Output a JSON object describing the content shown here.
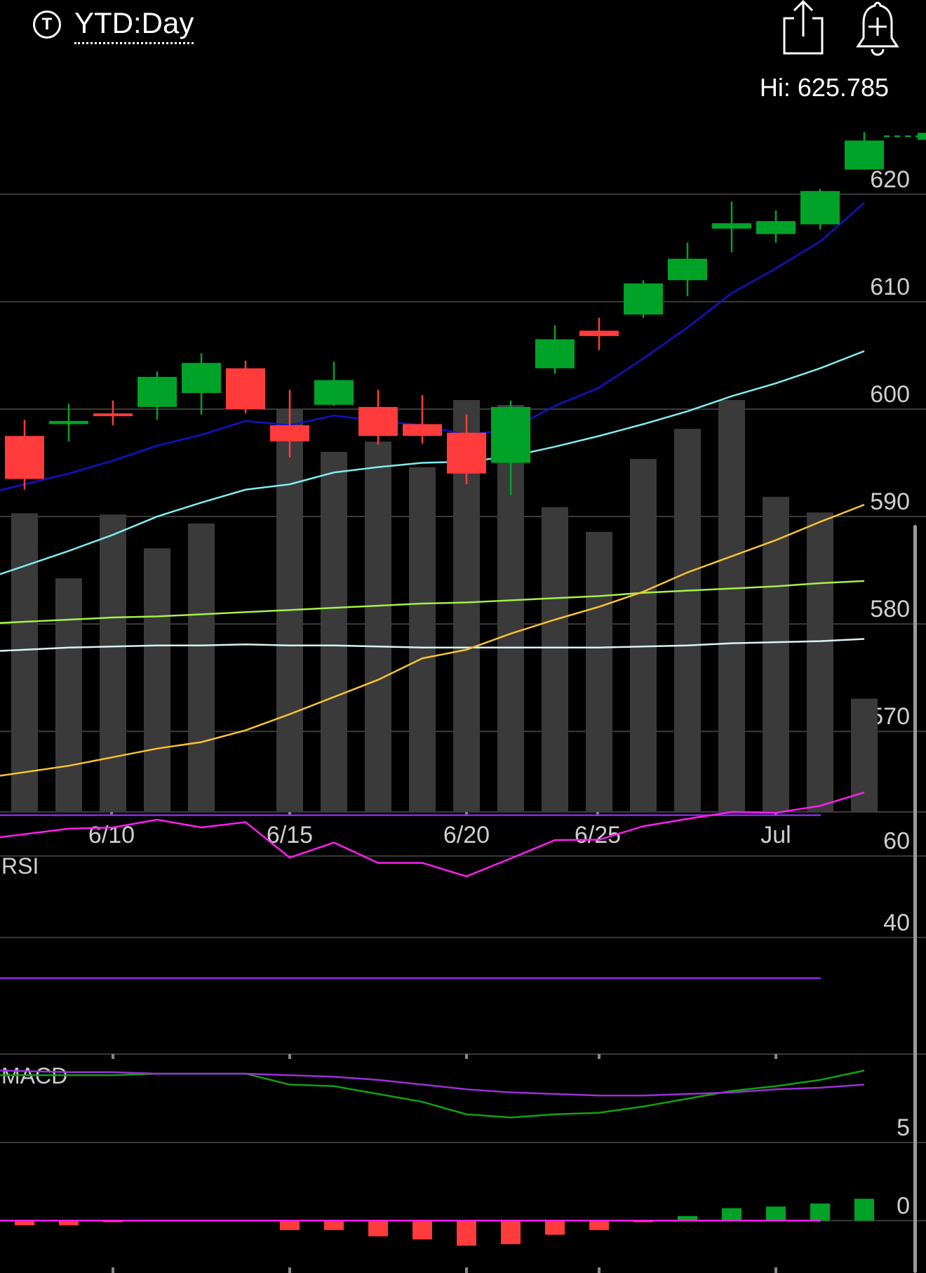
{
  "header": {
    "logo_letter": "T",
    "range_label": "YTD:Day",
    "hi_label": "Hi: 625.785"
  },
  "icons": {
    "logo": "t-circle-icon",
    "share": "share-icon",
    "alert": "add-alert-bell-icon"
  },
  "colors": {
    "up": "#00a327",
    "down": "#ff3b3b",
    "volume": "#3a3a3a",
    "ma_blue": "#1212c8",
    "ma_cyan": "#7feef0",
    "ma_lime": "#a6f04a",
    "ma_white": "#d8f3f3",
    "ma_yellow": "#f5c430",
    "rsi_line": "#ff1ef0",
    "rsi_bands": "#8a2be2",
    "macd_line": "#12a012",
    "signal_line": "#9a30d8",
    "macd_zero": "#ff1ef0",
    "grid": "#3a3a3a"
  },
  "chart_data": [
    {
      "type": "candlestick",
      "title": "",
      "x_tick_labels": [
        "6/10",
        "6/15",
        "6/20",
        "6/25",
        "Jul"
      ],
      "x_ticks_at_index": [
        2,
        6,
        10,
        13,
        17
      ],
      "y_tick_labels": [
        "620",
        "610",
        "600",
        "590",
        "580",
        "570"
      ],
      "ylim": [
        562.5,
        627.5
      ],
      "grid": true,
      "candles": [
        {
          "o": 597.5,
          "c": 593.5,
          "h": 599.0,
          "l": 592.5
        },
        {
          "o": 598.6,
          "c": 598.9,
          "h": 600.5,
          "l": 597.0
        },
        {
          "o": 599.6,
          "c": 599.5,
          "h": 600.8,
          "l": 598.5
        },
        {
          "o": 600.2,
          "c": 603.0,
          "h": 603.5,
          "l": 599.0
        },
        {
          "o": 601.5,
          "c": 604.3,
          "h": 605.2,
          "l": 599.5
        },
        {
          "o": 603.8,
          "c": 600.0,
          "h": 604.5,
          "l": 599.6
        },
        {
          "o": 598.5,
          "c": 597.0,
          "h": 601.8,
          "l": 595.5
        },
        {
          "o": 600.4,
          "c": 602.7,
          "h": 604.4,
          "l": 600.3
        },
        {
          "o": 600.2,
          "c": 597.5,
          "h": 601.8,
          "l": 596.7
        },
        {
          "o": 598.6,
          "c": 597.5,
          "h": 601.3,
          "l": 596.8
        },
        {
          "o": 597.8,
          "c": 594.0,
          "h": 599.5,
          "l": 593.0
        },
        {
          "o": 595.0,
          "c": 600.2,
          "h": 600.8,
          "l": 592.0
        },
        {
          "o": 603.8,
          "c": 606.5,
          "h": 607.8,
          "l": 603.3
        },
        {
          "o": 607.3,
          "c": 606.8,
          "h": 608.5,
          "l": 605.5
        },
        {
          "o": 608.8,
          "c": 611.7,
          "h": 612.0,
          "l": 608.5
        },
        {
          "o": 612.0,
          "c": 614.0,
          "h": 615.5,
          "l": 610.5
        },
        {
          "o": 616.8,
          "c": 617.3,
          "h": 619.3,
          "l": 614.6
        },
        {
          "o": 616.3,
          "c": 617.5,
          "h": 618.5,
          "l": 615.5
        },
        {
          "o": 617.2,
          "c": 620.3,
          "h": 620.5,
          "l": 616.7
        },
        {
          "o": 622.3,
          "c": 625.0,
          "h": 625.785,
          "l": 622.3
        }
      ],
      "hi_value": 625.785,
      "volume_relative": [
        0.725,
        0.567,
        0.722,
        0.64,
        0.7,
        0.0,
        0.978,
        0.874,
        0.899,
        0.837,
        1.0,
        0.988,
        0.74,
        0.68,
        0.857,
        0.93,
        1.0,
        0.765,
        0.727,
        0.275
      ],
      "series": [
        {
          "values": [
            593.0,
            594.0,
            595.2,
            596.6,
            597.6,
            598.9,
            598.5,
            599.4,
            598.9,
            598.5,
            597.6,
            598.1,
            600.3,
            602.0,
            604.7,
            607.6,
            610.8,
            613.1,
            615.6,
            619.2
          ]
        },
        {
          "values": [
            585.4,
            586.8,
            588.3,
            590.0,
            591.3,
            592.5,
            593.0,
            594.1,
            594.6,
            595.0,
            595.1,
            595.6,
            596.5,
            597.5,
            598.6,
            599.8,
            601.2,
            602.4,
            603.8,
            605.4
          ]
        },
        {
          "values": [
            580.2,
            580.4,
            580.6,
            580.7,
            580.9,
            581.1,
            581.3,
            581.5,
            581.7,
            581.9,
            582.0,
            582.2,
            582.4,
            582.6,
            582.9,
            583.1,
            583.3,
            583.5,
            583.8,
            584.0
          ]
        },
        {
          "values": [
            577.6,
            577.8,
            577.9,
            578.0,
            578.0,
            578.1,
            578.0,
            578.0,
            577.9,
            577.8,
            577.8,
            577.8,
            577.8,
            577.8,
            577.9,
            578.0,
            578.2,
            578.3,
            578.4,
            578.6
          ]
        },
        {
          "values": [
            566.2,
            566.8,
            567.6,
            568.4,
            569.0,
            570.1,
            571.6,
            573.2,
            574.8,
            576.8,
            577.6,
            579.1,
            580.4,
            581.6,
            583.0,
            584.8,
            586.3,
            587.8,
            589.5,
            591.1
          ]
        }
      ]
    },
    {
      "type": "line",
      "title": "RSI",
      "y_tick_labels": [
        "60",
        "40"
      ],
      "ylim": [
        20,
        82
      ],
      "bands": [
        70,
        30
      ],
      "grid": true,
      "series": [
        {
          "values": [
            64.6,
            66.7,
            67.0,
            68.9,
            67.0,
            68.3,
            59.6,
            63.3,
            58.3,
            58.3,
            55.0,
            59.4,
            63.9,
            64.0,
            67.3,
            69.1,
            70.8,
            70.6,
            72.3,
            75.6
          ]
        }
      ]
    },
    {
      "type": "line",
      "title": "MACD",
      "y_tick_labels": [
        "5",
        "0"
      ],
      "ylim": [
        -2.0,
        12.0
      ],
      "grid": true,
      "series": [
        {
          "values": [
            9.3,
            9.3,
            9.3,
            9.4,
            9.4,
            9.4,
            8.7,
            8.6,
            8.1,
            7.6,
            6.8,
            6.6,
            6.8,
            6.9,
            7.3,
            7.8,
            8.3,
            8.6,
            9.0,
            9.6
          ]
        },
        {
          "values": [
            9.6,
            9.5,
            9.5,
            9.4,
            9.4,
            9.4,
            9.3,
            9.2,
            9.0,
            8.7,
            8.4,
            8.2,
            8.1,
            8.0,
            8.0,
            8.1,
            8.2,
            8.4,
            8.5,
            8.7
          ]
        }
      ],
      "histogram": [
        -0.3,
        -0.3,
        -0.1,
        0.0,
        0.0,
        0.0,
        -0.6,
        -0.6,
        -1.0,
        -1.2,
        -1.6,
        -1.5,
        -0.9,
        -0.6,
        -0.1,
        0.3,
        0.8,
        0.9,
        1.1,
        1.4
      ]
    }
  ]
}
